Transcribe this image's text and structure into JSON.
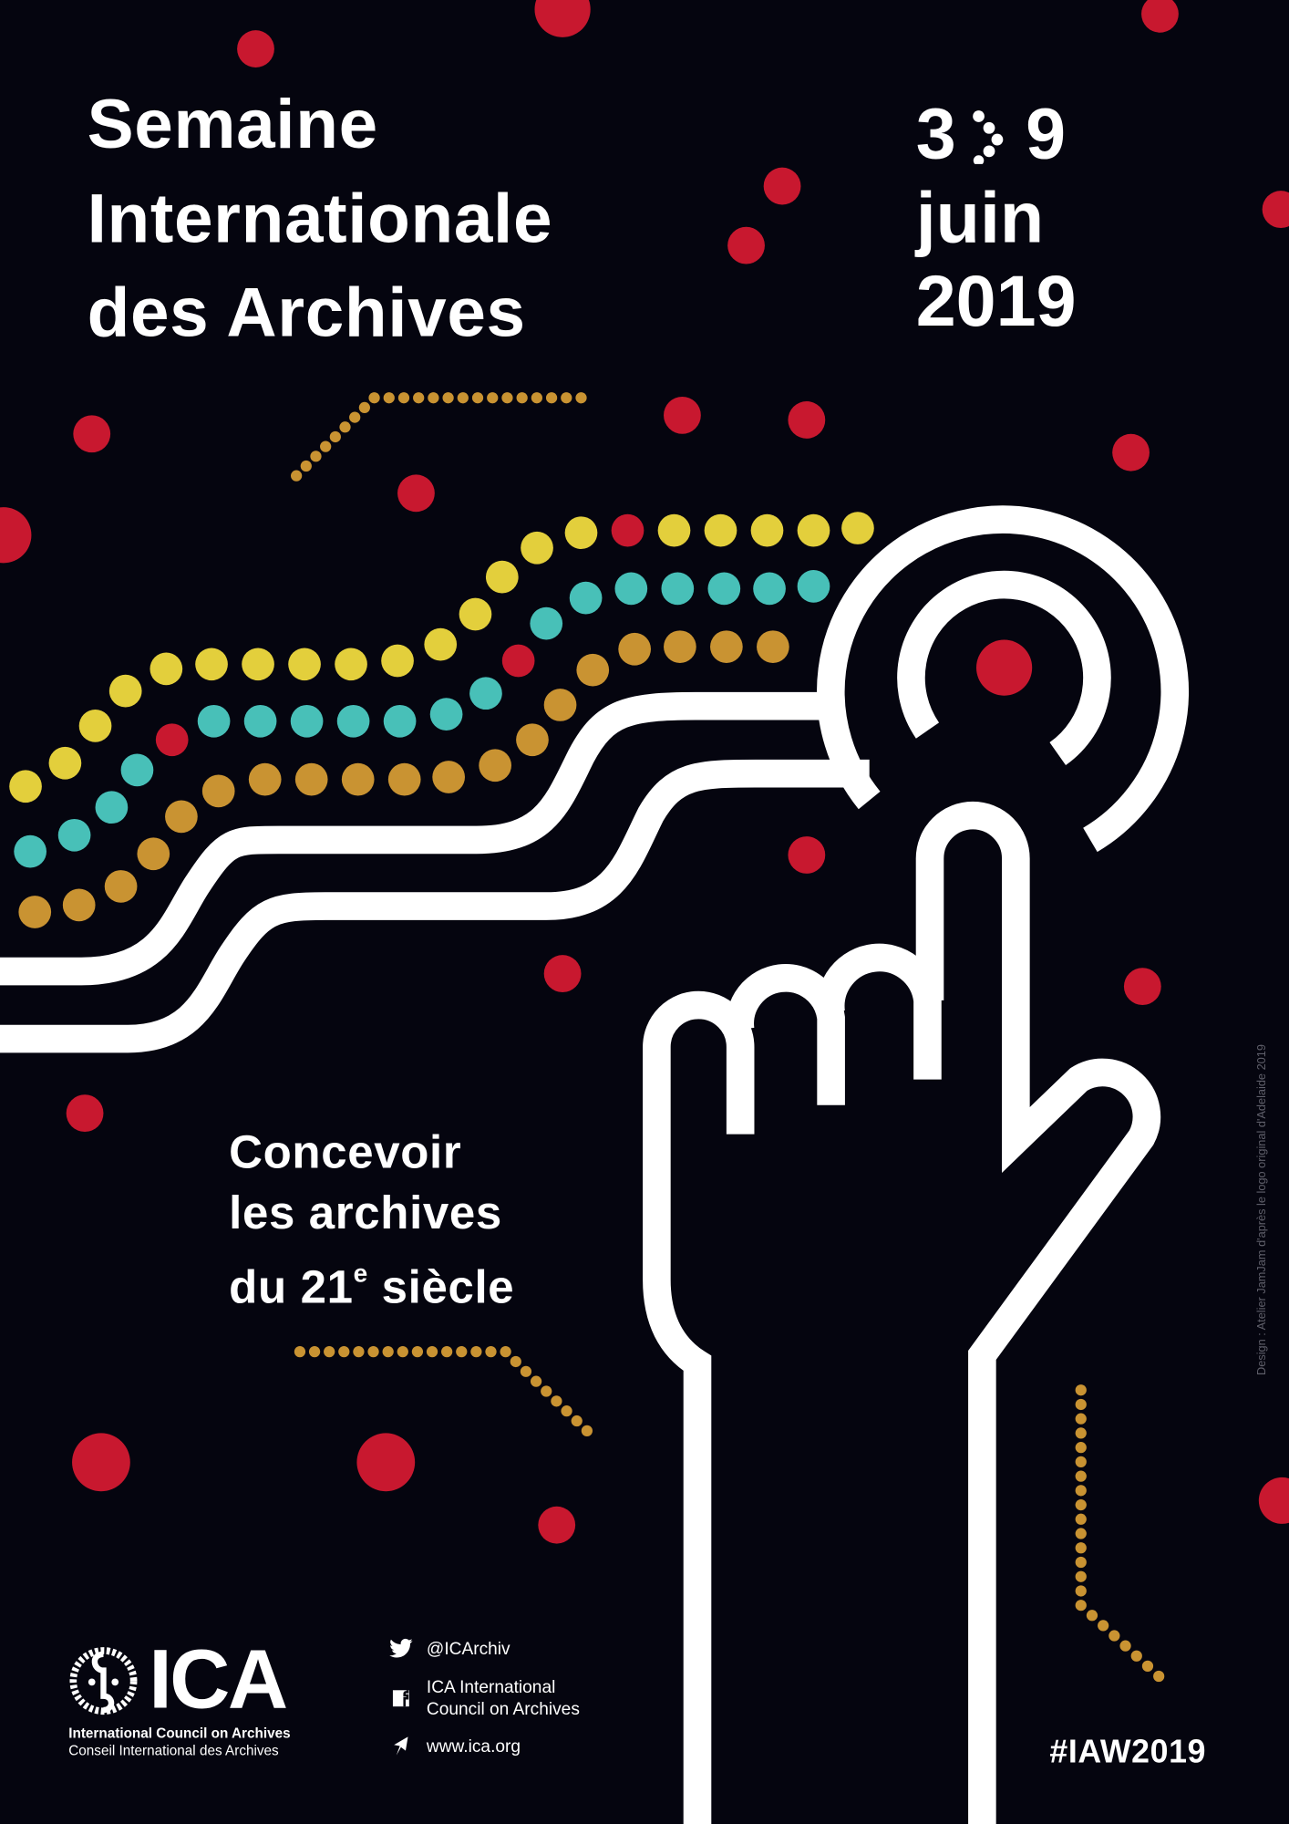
{
  "event": {
    "title_lines": [
      "Semaine",
      "Internationale",
      "des Archives"
    ],
    "date": {
      "start": "3",
      "end": "9",
      "month": "juin",
      "year": "2019",
      "range_icon": "dotted-arrow-icon"
    },
    "theme": {
      "line1": "Concevoir",
      "line2": "les archives",
      "line3_prefix": "du 21",
      "line3_sup": "e",
      "line3_suffix": " siècle"
    }
  },
  "footer": {
    "logo": {
      "word": "ICA",
      "name_en": "International Council on Archives",
      "name_fr": "Conseil International des Archives"
    },
    "social": [
      {
        "icon": "twitter-icon",
        "text": "@ICArchiv"
      },
      {
        "icon": "facebook-icon",
        "line1": "ICA International",
        "line2": "Council on Archives"
      },
      {
        "icon": "cursor-arrow-icon",
        "text": "www.ica.org"
      }
    ],
    "hashtag": "#IAW2019",
    "credit": "Design : Atelier JamJam d'après le logo original d'Adelaide 2019"
  },
  "colors": {
    "background": "#05050f",
    "red": "#c8182f",
    "yellow": "#e3cf3c",
    "teal": "#48c0b8",
    "ochre": "#c99332",
    "white": "#ffffff"
  }
}
